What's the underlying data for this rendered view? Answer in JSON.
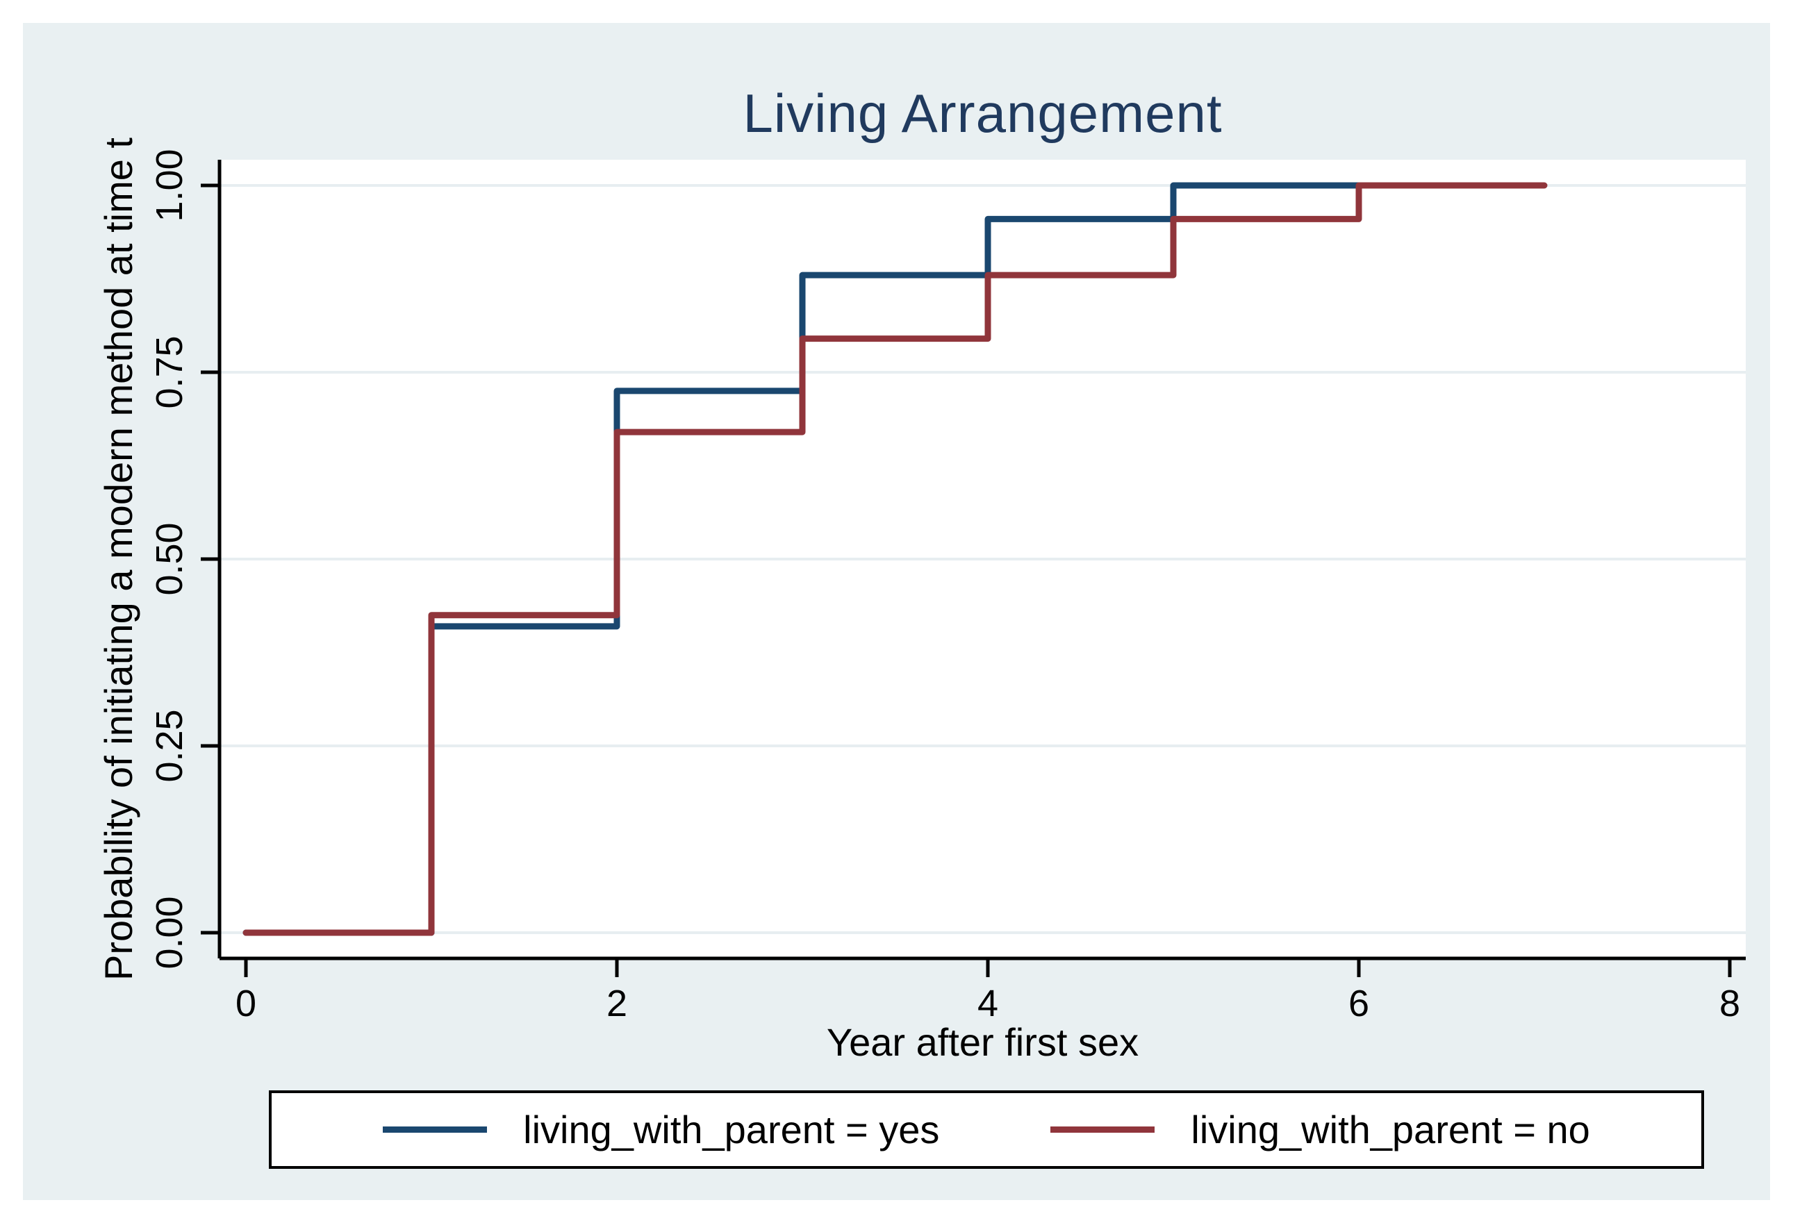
{
  "figure": {
    "page_background": "#ffffff",
    "canvas_background": "#e9f0f2",
    "plot_background": "#ffffff",
    "gridline_color": "#e7eef1",
    "axis_color": "#000000",
    "title_color": "#203a5e"
  },
  "chart_data": {
    "type": "line",
    "subtype": "step",
    "title": "Living Arrangement",
    "xlabel": "Year after first sex",
    "ylabel": "Probability of initiating a modern method at time t",
    "xlim": [
      0,
      8
    ],
    "ylim": [
      0.0,
      1.0
    ],
    "grid": "horizontal",
    "legend_position": "bottom",
    "xticks": [
      {
        "value": 0,
        "label": "0"
      },
      {
        "value": 2,
        "label": "2"
      },
      {
        "value": 4,
        "label": "4"
      },
      {
        "value": 6,
        "label": "6"
      },
      {
        "value": 8,
        "label": "8"
      }
    ],
    "yticks": [
      {
        "value": 0.0,
        "label": "0.00"
      },
      {
        "value": 0.25,
        "label": "0.25"
      },
      {
        "value": 0.5,
        "label": "0.50"
      },
      {
        "value": 0.75,
        "label": "0.75"
      },
      {
        "value": 1.0,
        "label": "1.00"
      }
    ],
    "series": [
      {
        "name": "living_with_parent = yes",
        "color": "#1a476f",
        "steps": [
          [
            0,
            0.0
          ],
          [
            1,
            0.41
          ],
          [
            2,
            0.725
          ],
          [
            3,
            0.88
          ],
          [
            4,
            0.955
          ],
          [
            5,
            1.0
          ],
          [
            6,
            1.0
          ]
        ]
      },
      {
        "name": "living_with_parent = no",
        "color": "#90353b",
        "steps": [
          [
            0,
            0.0
          ],
          [
            1,
            0.425
          ],
          [
            2,
            0.67
          ],
          [
            3,
            0.795
          ],
          [
            4,
            0.88
          ],
          [
            5,
            0.955
          ],
          [
            6,
            1.0
          ],
          [
            7,
            1.0
          ]
        ]
      }
    ]
  }
}
